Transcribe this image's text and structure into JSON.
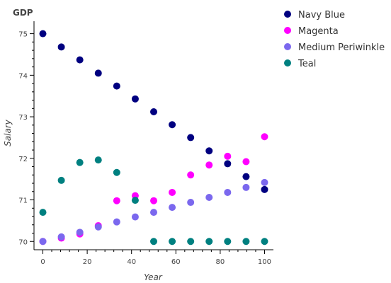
{
  "chart_data": {
    "type": "scatter",
    "title": "GDP",
    "xlabel": "Year",
    "ylabel": "Salary",
    "xlim": [
      -4,
      104
    ],
    "ylim": [
      69.8,
      75.3
    ],
    "xticks": [
      0,
      20,
      40,
      60,
      80,
      100
    ],
    "yticks": [
      70,
      71,
      72,
      73,
      74,
      75
    ],
    "grid": false,
    "legend": "right",
    "x": [
      0,
      8.33,
      16.67,
      25,
      33.33,
      41.67,
      50,
      58.33,
      66.67,
      75,
      83.33,
      91.67,
      100
    ],
    "series": [
      {
        "name": "Navy Blue",
        "color": "#000080",
        "values": [
          75.0,
          74.68,
          74.37,
          74.05,
          73.74,
          73.43,
          73.12,
          72.81,
          72.5,
          72.18,
          71.87,
          71.56,
          71.25
        ]
      },
      {
        "name": "Magenta",
        "color": "#ff00ff",
        "values": [
          70.0,
          70.08,
          70.18,
          70.38,
          70.98,
          71.1,
          70.98,
          71.18,
          71.6,
          71.84,
          72.05,
          71.92,
          72.52
        ]
      },
      {
        "name": "Medium Periwinkle",
        "color": "#7b68ee",
        "values": [
          70.0,
          70.11,
          70.22,
          70.35,
          70.47,
          70.59,
          70.7,
          70.82,
          70.94,
          71.06,
          71.18,
          71.3,
          71.42
        ]
      },
      {
        "name": "Teal",
        "color": "#008080",
        "values": [
          70.7,
          71.47,
          71.9,
          71.96,
          71.66,
          70.99,
          70.0,
          70.0,
          70.0,
          70.0,
          70.0,
          70.0,
          70.0
        ]
      }
    ]
  }
}
